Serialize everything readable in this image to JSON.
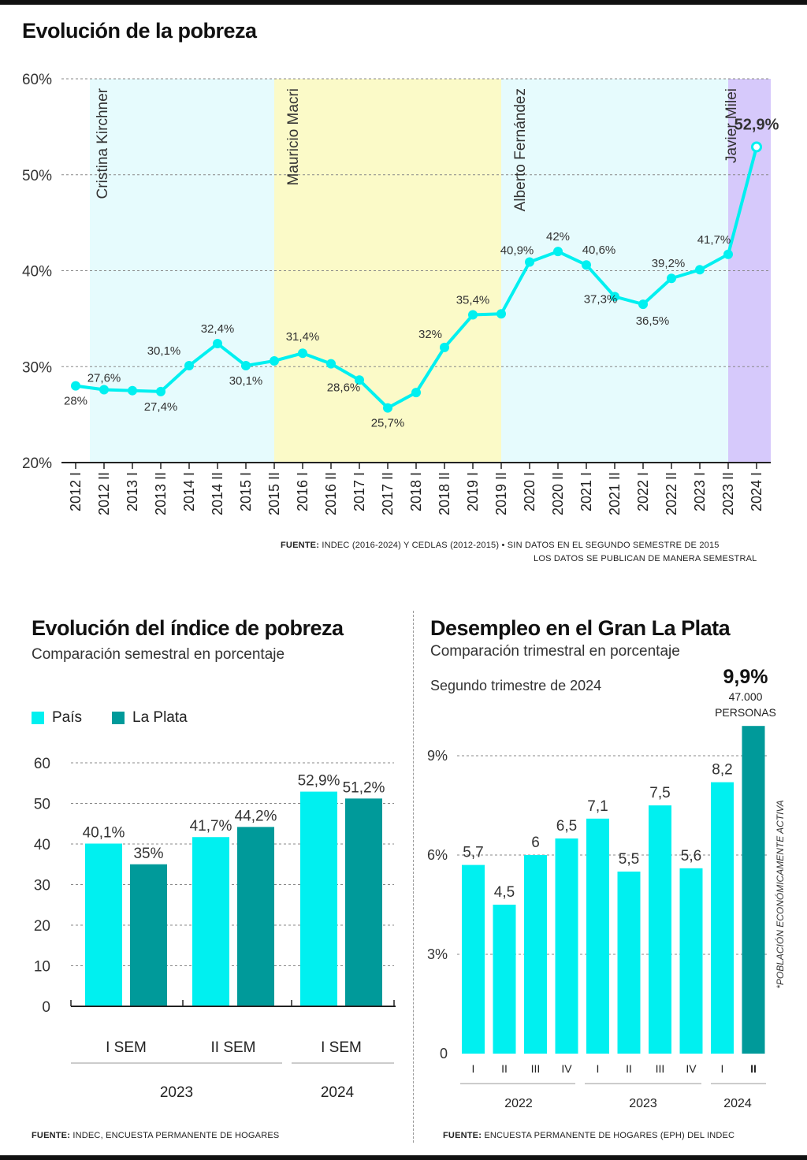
{
  "colors": {
    "cyan": "#00f0f0",
    "teal": "#009a9a",
    "bg_cristina": "#e6fbfd",
    "bg_macri": "#fbfac8",
    "bg_fernandez": "#e6fbfd",
    "bg_milei": "#d6c9fb",
    "grid": "#888888",
    "text": "#1a1a1a"
  },
  "chart_data": [
    {
      "id": "pobreza",
      "type": "line",
      "title": "Evolución de la pobreza",
      "x": [
        "2012 I",
        "2012 II",
        "2013 I",
        "2013 II",
        "2014 I",
        "2014 II",
        "2015 I",
        "2015 II",
        "2016 I",
        "2016 II",
        "2017 I",
        "2017 II",
        "2018 I",
        "2018 II",
        "2019 I",
        "2019 II",
        "2020 I",
        "2020 II",
        "2021 I",
        "2021 II",
        "2022 I",
        "2022 II",
        "2023 I",
        "2023 II",
        "2024 I"
      ],
      "values": [
        28,
        27.6,
        27.5,
        27.4,
        30.1,
        32.4,
        30.1,
        30.6,
        31.4,
        30.3,
        28.6,
        25.7,
        27.3,
        32,
        35.4,
        35.5,
        40.9,
        42,
        40.6,
        37.3,
        36.5,
        39.2,
        40.1,
        41.7,
        52.9
      ],
      "data_labels": [
        {
          "index": 0,
          "text": "28%"
        },
        {
          "index": 1,
          "text": "27,6%"
        },
        {
          "index": 3,
          "text": "27,4%"
        },
        {
          "index": 4,
          "text": "30,1%"
        },
        {
          "index": 5,
          "text": "32,4%"
        },
        {
          "index": 6,
          "text": "30,1%"
        },
        {
          "index": 8,
          "text": "31,4%"
        },
        {
          "index": 10,
          "text": "28,6%"
        },
        {
          "index": 11,
          "text": "25,7%"
        },
        {
          "index": 13,
          "text": "32%"
        },
        {
          "index": 14,
          "text": "35,4%"
        },
        {
          "index": 16,
          "text": "40,9%"
        },
        {
          "index": 17,
          "text": "42%"
        },
        {
          "index": 18,
          "text": "40,6%"
        },
        {
          "index": 19,
          "text": "37,3%"
        },
        {
          "index": 20,
          "text": "36,5%"
        },
        {
          "index": 21,
          "text": "39,2%"
        },
        {
          "index": 23,
          "text": "41,7%"
        },
        {
          "index": 24,
          "text": "52,9%"
        }
      ],
      "yticks": [
        "20%",
        "30%",
        "40%",
        "50%",
        "60%"
      ],
      "ylim": [
        20,
        60
      ],
      "periods": [
        {
          "name": "Cristina Kirchner",
          "start": 0.5,
          "end": 7
        },
        {
          "name": "Mauricio Macri",
          "start": 7,
          "end": 15
        },
        {
          "name": "Alberto Fernández",
          "start": 15,
          "end": 23
        },
        {
          "name": "Javier Milei",
          "start": 23,
          "end": 24.5
        }
      ],
      "source_label": "FUENTE:",
      "source_text": "INDEC (2016-2024) Y CEDLAS (2012-2015) • SIN DATOS EN EL SEGUNDO SEMESTRE DE 2015",
      "source_text2": "LOS DATOS SE PUBLICAN DE MANERA SEMESTRAL"
    },
    {
      "id": "indice",
      "type": "bar",
      "title": "Evolución del índice de pobreza",
      "subtitle": "Comparación semestral en porcentaje",
      "legend": [
        "País",
        "La Plata"
      ],
      "categories": [
        "I SEM",
        "II SEM",
        "I SEM"
      ],
      "years": [
        {
          "label": "2023",
          "span": 2
        },
        {
          "label": "2024",
          "span": 1
        }
      ],
      "series": [
        {
          "name": "País",
          "values": [
            40.1,
            41.7,
            52.9
          ],
          "labels": [
            "40,1%",
            "41,7%",
            "52,9%"
          ]
        },
        {
          "name": "La Plata",
          "values": [
            35,
            44.2,
            51.2
          ],
          "labels": [
            "35%",
            "44,2%",
            "51,2%"
          ]
        }
      ],
      "yticks": [
        "0",
        "10",
        "20",
        "30",
        "40",
        "50",
        "60"
      ],
      "ylim": [
        0,
        60
      ],
      "source_label": "FUENTE:",
      "source_text": "INDEC, ENCUESTA PERMANENTE DE HOGARES"
    },
    {
      "id": "desempleo",
      "type": "bar",
      "title": "Desempleo en el Gran La Plata",
      "subtitle": "Comparación trimestral en porcentaje",
      "note": "Segundo trimestre de 2024",
      "highlight_value": "9,9%",
      "highlight_line1": "47.000",
      "highlight_line2": "PERSONAS",
      "side_note": "*POBLACIÓN ECONÓMICAMENTE ACTIVA",
      "categories": [
        "I",
        "II",
        "III",
        "IV",
        "I",
        "II",
        "III",
        "IV",
        "I",
        "II"
      ],
      "years": [
        {
          "label": "2022",
          "span": 4
        },
        {
          "label": "2023",
          "span": 4
        },
        {
          "label": "2024",
          "span": 2
        }
      ],
      "values": [
        5.7,
        4.5,
        6,
        6.5,
        7.1,
        5.5,
        7.5,
        5.6,
        8.2,
        9.9
      ],
      "labels": [
        "5,7",
        "4,5",
        "6",
        "6,5",
        "7,1",
        "5,5",
        "7,5",
        "5,6",
        "8,2",
        ""
      ],
      "yticks": [
        "0",
        "3%",
        "6%",
        "9%"
      ],
      "ylim": [
        0,
        9
      ],
      "source_label": "FUENTE:",
      "source_text": "ENCUESTA PERMANENTE DE HOGARES (EPH) DEL INDEC"
    }
  ]
}
